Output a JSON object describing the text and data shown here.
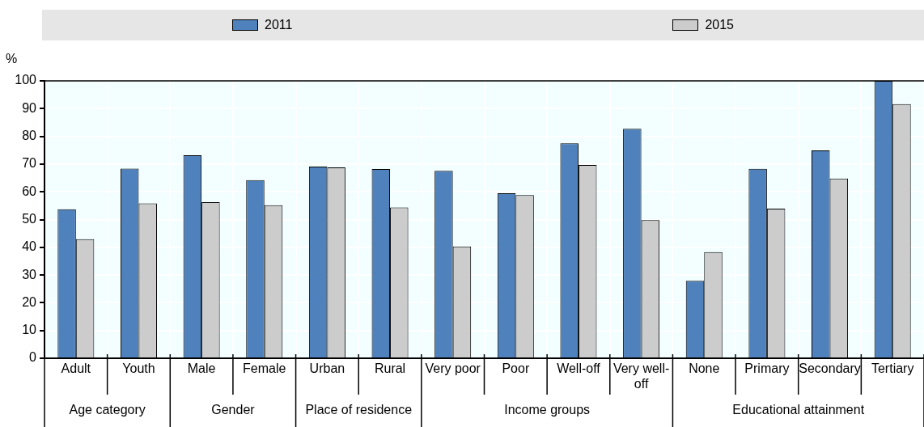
{
  "chart_data": {
    "type": "bar",
    "ylabel": "%",
    "categories": [
      "Adult",
      "Youth",
      "Male",
      "Female",
      "Urban",
      "Rural",
      "Very poor",
      "Poor",
      "Well-off",
      "Very well-off",
      "None",
      "Primary",
      "Secondary",
      "Tertiary"
    ],
    "series": [
      {
        "name": "2011",
        "color": "#4f81bd",
        "values": [
          53.7,
          68.4,
          73.2,
          64.2,
          69.1,
          68.2,
          67.6,
          59.5,
          77.5,
          82.7,
          27.9,
          68.3,
          74.9,
          100
        ]
      },
      {
        "name": "2015",
        "color": "#cccccc",
        "values": [
          42.9,
          55.8,
          56.3,
          55.2,
          68.8,
          54.4,
          40.3,
          58.8,
          69.7,
          49.8,
          38.3,
          53.9,
          64.8,
          91.6
        ]
      }
    ],
    "ylim": [
      0,
      100
    ],
    "yticks": [
      0,
      10,
      20,
      30,
      40,
      50,
      60,
      70,
      80,
      90,
      100
    ],
    "grid": true,
    "legend": "top",
    "annotations": [
      "Age category",
      "Gender",
      "Place of residence",
      "Income groups",
      "Educational attainment"
    ]
  }
}
